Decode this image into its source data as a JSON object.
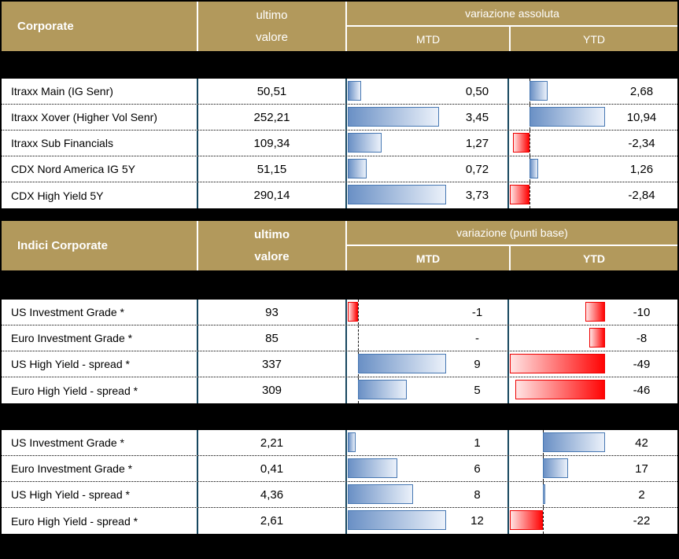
{
  "report": {
    "colors": {
      "background": "#000000",
      "header_bg": "#B2995C",
      "header_text": "#FFFFFF",
      "divider_navy": "#17475F",
      "bar_blue_border": "#4677B2",
      "bar_blue_dark": "#6A90C5",
      "bar_blue_light": "#EBF1FA",
      "bar_red_border": "#EE0000",
      "bar_red_solid": "#FF0404",
      "bar_red_light": "#FFE4E4"
    },
    "tables": [
      {
        "header": {
          "title": "Corporate",
          "value_line1": "ultimo",
          "value_line2": "valore",
          "variation_label": "variazione assoluta",
          "mtd_label": "MTD",
          "ytd_label": "YTD"
        },
        "rows": [
          {
            "label": "Itraxx Main (IG Senr)",
            "value": "50,51",
            "mtd": "0,50",
            "mtd_num": 0.5,
            "ytd": "2,68",
            "ytd_num": 2.68
          },
          {
            "label": "Itraxx Xover (Higher Vol Senr)",
            "value": "252,21",
            "mtd": "3,45",
            "mtd_num": 3.45,
            "ytd": "10,94",
            "ytd_num": 10.94
          },
          {
            "label": "Itraxx Sub Financials",
            "value": "109,34",
            "mtd": "1,27",
            "mtd_num": 1.27,
            "ytd": "-2,34",
            "ytd_num": -2.34
          },
          {
            "label": "CDX Nord America IG 5Y",
            "value": "51,15",
            "mtd": "0,72",
            "mtd_num": 0.72,
            "ytd": "1,26",
            "ytd_num": 1.26
          },
          {
            "label": "CDX High Yield 5Y",
            "value": "290,14",
            "mtd": "3,73",
            "mtd_num": 3.73,
            "ytd": "-2,84",
            "ytd_num": -2.84
          }
        ]
      },
      {
        "header": {
          "title": "Indici Corporate",
          "value_line1": "ultimo",
          "value_line2": "valore",
          "variation_label": "variazione (punti base)",
          "mtd_label": "MTD",
          "ytd_label": "YTD"
        },
        "rows": [
          {
            "label": "US Investment Grade *",
            "value": "93",
            "mtd": "-1",
            "mtd_num": -1,
            "ytd": "-10",
            "ytd_num": -10
          },
          {
            "label": "Euro Investment Grade *",
            "value": "85",
            "mtd": "-",
            "mtd_num": null,
            "ytd": "-8",
            "ytd_num": -8
          },
          {
            "label": "US High Yield  - spread *",
            "value": "337",
            "mtd": "9",
            "mtd_num": 9,
            "ytd": "-49",
            "ytd_num": -49
          },
          {
            "label": "Euro High Yield  - spread *",
            "value": "309",
            "mtd": "5",
            "mtd_num": 5,
            "ytd": "-46",
            "ytd_num": -46
          }
        ]
      },
      {
        "rows": [
          {
            "label": "US Investment Grade *",
            "value": "2,21",
            "mtd": "1",
            "mtd_num": 1,
            "ytd": "42",
            "ytd_num": 42
          },
          {
            "label": "Euro Investment Grade *",
            "value": "0,41",
            "mtd": "6",
            "mtd_num": 6,
            "ytd": "17",
            "ytd_num": 17
          },
          {
            "label": "US High Yield  - spread *",
            "value": "4,36",
            "mtd": "8",
            "mtd_num": 8,
            "ytd": "2",
            "ytd_num": 2
          },
          {
            "label": "Euro High Yield  - spread *",
            "value": "2,61",
            "mtd": "12",
            "mtd_num": 12,
            "ytd": "-22",
            "ytd_num": -22
          }
        ]
      }
    ]
  }
}
